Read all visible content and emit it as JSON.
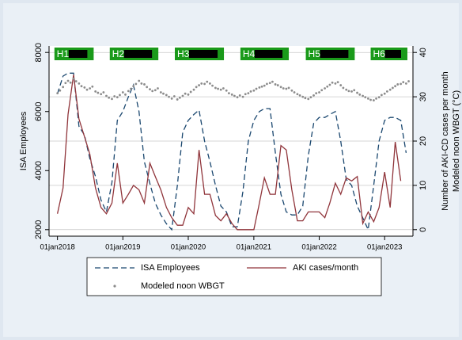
{
  "chart_data": {
    "type": "line",
    "ylabel": "ISA Employees",
    "y2label": [
      "Number of AKI-CD cases per month",
      "Modeled noon WBGT (°C)"
    ],
    "xlim": [
      "2017-11-15",
      "2023-06-08"
    ],
    "xticks": [
      {
        "value": "2018-01-01",
        "label": "01jan2018"
      },
      {
        "value": "2019-01-01",
        "label": "01jan2019"
      },
      {
        "value": "2020-01-01",
        "label": "01jan2020"
      },
      {
        "value": "2021-01-01",
        "label": "01jan2021"
      },
      {
        "value": "2022-01-01",
        "label": "01jan2022"
      },
      {
        "value": "2023-01-01",
        "label": "01jan2023"
      }
    ],
    "ylim": [
      1780,
      8220
    ],
    "yticks": [
      2000,
      4000,
      6000,
      8000
    ],
    "y2lim": [
      -1.47,
      41.47
    ],
    "y2ticks": [
      0,
      10,
      20,
      30,
      40
    ],
    "grid": "y2",
    "harvests": [
      {
        "label": "H1",
        "start": "2017-12-15",
        "end": "2018-07-22"
      },
      {
        "label": "H2",
        "start": "2018-10-20",
        "end": "2019-07-18"
      },
      {
        "label": "H3",
        "start": "2019-10-18",
        "end": "2020-07-18"
      },
      {
        "label": "H4",
        "start": "2020-10-18",
        "end": "2021-07-15"
      },
      {
        "label": "H5",
        "start": "2021-10-18",
        "end": "2022-07-18"
      },
      {
        "label": "H6",
        "start": "2022-10-15",
        "end": "2023-05-08"
      }
    ],
    "x": [
      "2018-01-01",
      "2018-02-01",
      "2018-03-01",
      "2018-04-01",
      "2018-05-01",
      "2018-06-01",
      "2018-07-01",
      "2018-08-01",
      "2018-09-01",
      "2018-10-01",
      "2018-11-01",
      "2018-12-01",
      "2019-01-01",
      "2019-02-01",
      "2019-03-01",
      "2019-04-01",
      "2019-05-01",
      "2019-06-01",
      "2019-07-01",
      "2019-08-01",
      "2019-09-01",
      "2019-10-01",
      "2019-11-01",
      "2019-12-01",
      "2020-01-01",
      "2020-02-01",
      "2020-03-01",
      "2020-04-01",
      "2020-05-01",
      "2020-06-01",
      "2020-07-01",
      "2020-08-01",
      "2020-09-01",
      "2020-10-01",
      "2020-11-01",
      "2020-12-01",
      "2021-01-01",
      "2021-02-01",
      "2021-03-01",
      "2021-04-01",
      "2021-05-01",
      "2021-06-01",
      "2021-07-01",
      "2021-08-01",
      "2021-09-01",
      "2021-10-01",
      "2021-11-01",
      "2021-12-01",
      "2022-01-01",
      "2022-02-01",
      "2022-03-01",
      "2022-04-01",
      "2022-05-01",
      "2022-06-01",
      "2022-07-01",
      "2022-08-01",
      "2022-09-01",
      "2022-10-01",
      "2022-11-01",
      "2022-12-01",
      "2023-01-01",
      "2023-02-01",
      "2023-03-01",
      "2023-04-01",
      "2023-05-01"
    ],
    "series": [
      {
        "name": "ISA Employees",
        "color": "#1a476f",
        "dash": true,
        "values": [
          6600,
          7200,
          7300,
          7300,
          5500,
          5200,
          4400,
          3800,
          3000,
          2600,
          3600,
          5700,
          6000,
          6500,
          6900,
          6000,
          4300,
          3560,
          2900,
          2500,
          2200,
          2000,
          3500,
          5300,
          5700,
          5900,
          6050,
          5000,
          4300,
          3500,
          2800,
          2600,
          2100,
          2100,
          3300,
          5000,
          5700,
          6000,
          6100,
          6100,
          4600,
          3200,
          2600,
          2500,
          2500,
          2800,
          4500,
          5600,
          5800,
          5800,
          5900,
          6000,
          5000,
          3700,
          3500,
          2800,
          2400,
          2000,
          3500,
          5000,
          5700,
          5800,
          5800,
          5700,
          4600
        ]
      },
      {
        "name": "AKI cases/month",
        "color": "#90353b",
        "axis": "y2",
        "values": [
          3.6,
          9.4,
          26,
          35,
          25,
          21,
          17,
          9.4,
          5,
          3.6,
          6,
          15,
          6,
          8,
          10,
          9,
          6,
          15,
          12,
          9,
          5,
          2.7,
          1,
          1,
          5,
          3.6,
          18,
          8,
          8,
          3.2,
          2,
          3.6,
          1.4,
          0,
          0,
          0,
          0,
          6,
          11.7,
          8,
          8,
          19,
          18,
          9,
          2,
          2,
          4,
          4,
          4,
          2.7,
          6,
          10.5,
          8,
          11.7,
          11,
          12,
          1.4,
          4,
          1.8,
          5,
          13,
          5,
          19.8,
          11,
          null
        ]
      },
      {
        "name": "Modeled noon WBGT",
        "color": "#8c8c8c",
        "axis": "y2",
        "type": "scatter",
        "x": [
          "2018-01-01",
          "2018-01-15",
          "2018-02-01",
          "2018-02-15",
          "2018-03-01",
          "2018-03-15",
          "2018-04-01",
          "2018-04-15",
          "2018-05-01",
          "2018-05-15",
          "2018-06-01",
          "2018-06-15",
          "2018-07-01",
          "2018-07-15",
          "2018-08-01",
          "2018-08-15",
          "2018-09-01",
          "2018-09-15",
          "2018-10-01",
          "2018-10-15",
          "2018-11-01",
          "2018-11-15",
          "2018-12-01",
          "2018-12-15",
          "2019-01-01",
          "2019-01-15",
          "2019-02-01",
          "2019-02-15",
          "2019-03-01",
          "2019-03-15",
          "2019-04-01",
          "2019-04-15",
          "2019-05-01",
          "2019-05-15",
          "2019-06-01",
          "2019-06-15",
          "2019-07-01",
          "2019-07-15",
          "2019-08-01",
          "2019-08-15",
          "2019-09-01",
          "2019-09-15",
          "2019-10-01",
          "2019-10-15",
          "2019-11-01",
          "2019-11-15",
          "2019-12-01",
          "2019-12-15",
          "2020-01-01",
          "2020-01-15",
          "2020-02-01",
          "2020-02-15",
          "2020-03-01",
          "2020-03-15",
          "2020-04-01",
          "2020-04-15",
          "2020-05-01",
          "2020-05-15",
          "2020-06-01",
          "2020-06-15",
          "2020-07-01",
          "2020-07-15",
          "2020-08-01",
          "2020-08-15",
          "2020-09-01",
          "2020-09-15",
          "2020-10-01",
          "2020-10-15",
          "2020-11-01",
          "2020-11-15",
          "2020-12-01",
          "2020-12-15",
          "2021-01-01",
          "2021-01-15",
          "2021-02-01",
          "2021-02-15",
          "2021-03-01",
          "2021-03-15",
          "2021-04-01",
          "2021-04-15",
          "2021-05-01",
          "2021-05-15",
          "2021-06-01",
          "2021-06-15",
          "2021-07-01",
          "2021-07-15",
          "2021-08-01",
          "2021-08-15",
          "2021-09-01",
          "2021-09-15",
          "2021-10-01",
          "2021-10-15",
          "2021-11-01",
          "2021-11-15",
          "2021-12-01",
          "2021-12-15",
          "2022-01-01",
          "2022-01-15",
          "2022-02-01",
          "2022-02-15",
          "2022-03-01",
          "2022-03-15",
          "2022-04-01",
          "2022-04-15",
          "2022-05-01",
          "2022-05-15",
          "2022-06-01",
          "2022-06-15",
          "2022-07-01",
          "2022-07-15",
          "2022-08-01",
          "2022-08-15",
          "2022-09-01",
          "2022-09-15",
          "2022-10-01",
          "2022-10-15",
          "2022-11-01",
          "2022-11-15",
          "2022-12-01",
          "2022-12-15",
          "2023-01-01",
          "2023-01-15",
          "2023-02-01",
          "2023-02-15",
          "2023-03-01",
          "2023-03-15",
          "2023-04-01",
          "2023-04-15",
          "2023-05-01",
          "2023-05-15"
        ],
        "values": [
          30.8,
          31.4,
          32.2,
          33.1,
          33.6,
          33.2,
          34.1,
          33.5,
          33.0,
          32.4,
          32.1,
          31.6,
          31.9,
          32.3,
          31.2,
          30.9,
          30.6,
          31.0,
          30.2,
          29.8,
          29.5,
          30.1,
          29.9,
          30.4,
          31.0,
          30.5,
          31.3,
          31.8,
          32.4,
          32.9,
          33.6,
          33.0,
          32.8,
          32.2,
          31.7,
          31.3,
          31.5,
          31.9,
          31.0,
          30.7,
          30.4,
          30.0,
          29.6,
          30.1,
          29.4,
          29.8,
          30.2,
          30.7,
          30.5,
          31.1,
          31.6,
          32.2,
          32.6,
          33.0,
          32.9,
          33.4,
          33.0,
          32.5,
          32.0,
          31.8,
          31.6,
          31.9,
          31.4,
          30.8,
          30.5,
          30.2,
          29.9,
          30.3,
          30.0,
          30.6,
          30.8,
          31.2,
          31.4,
          31.8,
          32.1,
          32.3,
          32.5,
          32.9,
          33.1,
          33.4,
          32.8,
          32.6,
          32.2,
          31.9,
          31.8,
          32.0,
          31.4,
          31.0,
          30.6,
          30.3,
          30.0,
          29.7,
          29.5,
          29.9,
          30.3,
          30.8,
          31.0,
          31.5,
          31.9,
          32.3,
          32.7,
          33.2,
          33.0,
          33.3,
          32.6,
          32.0,
          31.6,
          31.3,
          31.2,
          31.5,
          30.9,
          30.5,
          30.2,
          29.9,
          29.6,
          29.3,
          29.2,
          29.6,
          29.9,
          30.4,
          30.7,
          31.2,
          31.6,
          32.0,
          32.4,
          32.8,
          32.9,
          33.3,
          33.0,
          33.5
        ]
      }
    ]
  }
}
